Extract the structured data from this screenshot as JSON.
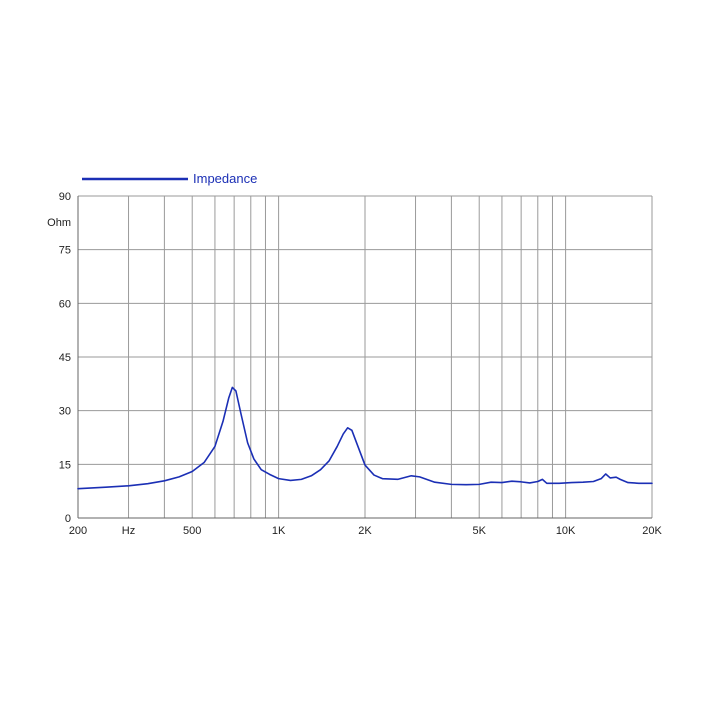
{
  "chart_data": {
    "type": "line",
    "x_scale": "log",
    "xlim": [
      200,
      20000
    ],
    "ylim": [
      0,
      90
    ],
    "ylabel": "Ohm",
    "xlabel_tick": "Hz",
    "grid": true,
    "legend_position": "top-left",
    "colors": {
      "series": "#1b2fb5",
      "grid": "#9a9a9a",
      "axis": "#666666"
    },
    "x_ticks": [
      {
        "value": 200,
        "label": "200"
      },
      {
        "value": 500,
        "label": "500"
      },
      {
        "value": 1000,
        "label": "1K"
      },
      {
        "value": 2000,
        "label": "2K"
      },
      {
        "value": 5000,
        "label": "5K"
      },
      {
        "value": 10000,
        "label": "10K"
      },
      {
        "value": 20000,
        "label": "20K"
      }
    ],
    "x_gridlines": [
      300,
      400,
      500,
      600,
      700,
      800,
      900,
      1000,
      2000,
      3000,
      4000,
      5000,
      6000,
      7000,
      8000,
      9000,
      10000,
      20000
    ],
    "y_ticks": [
      0,
      15,
      30,
      45,
      60,
      75,
      90
    ],
    "series": [
      {
        "name": "Impedance",
        "points": [
          [
            200,
            8.2
          ],
          [
            250,
            8.6
          ],
          [
            300,
            9.0
          ],
          [
            350,
            9.6
          ],
          [
            400,
            10.4
          ],
          [
            450,
            11.5
          ],
          [
            500,
            13.0
          ],
          [
            550,
            15.5
          ],
          [
            600,
            20.0
          ],
          [
            640,
            27.0
          ],
          [
            670,
            33.5
          ],
          [
            690,
            36.5
          ],
          [
            710,
            35.5
          ],
          [
            740,
            29.0
          ],
          [
            780,
            21.0
          ],
          [
            820,
            16.5
          ],
          [
            870,
            13.5
          ],
          [
            930,
            12.2
          ],
          [
            1000,
            11.0
          ],
          [
            1100,
            10.5
          ],
          [
            1200,
            10.8
          ],
          [
            1300,
            11.8
          ],
          [
            1400,
            13.5
          ],
          [
            1500,
            16.0
          ],
          [
            1600,
            20.0
          ],
          [
            1680,
            23.5
          ],
          [
            1740,
            25.2
          ],
          [
            1800,
            24.5
          ],
          [
            1880,
            20.5
          ],
          [
            2000,
            14.8
          ],
          [
            2150,
            12.0
          ],
          [
            2300,
            11.0
          ],
          [
            2600,
            10.8
          ],
          [
            2900,
            11.8
          ],
          [
            3100,
            11.5
          ],
          [
            3500,
            10.0
          ],
          [
            4000,
            9.4
          ],
          [
            4500,
            9.3
          ],
          [
            5000,
            9.4
          ],
          [
            5500,
            10.0
          ],
          [
            6000,
            9.9
          ],
          [
            6500,
            10.3
          ],
          [
            7000,
            10.1
          ],
          [
            7500,
            9.8
          ],
          [
            8000,
            10.2
          ],
          [
            8300,
            10.8
          ],
          [
            8600,
            9.7
          ],
          [
            9500,
            9.7
          ],
          [
            10500,
            9.9
          ],
          [
            11500,
            10.0
          ],
          [
            12500,
            10.2
          ],
          [
            13300,
            11.0
          ],
          [
            13800,
            12.3
          ],
          [
            14300,
            11.2
          ],
          [
            15000,
            11.4
          ],
          [
            15500,
            10.8
          ],
          [
            16500,
            9.9
          ],
          [
            18000,
            9.7
          ],
          [
            20000,
            9.7
          ]
        ]
      }
    ]
  }
}
